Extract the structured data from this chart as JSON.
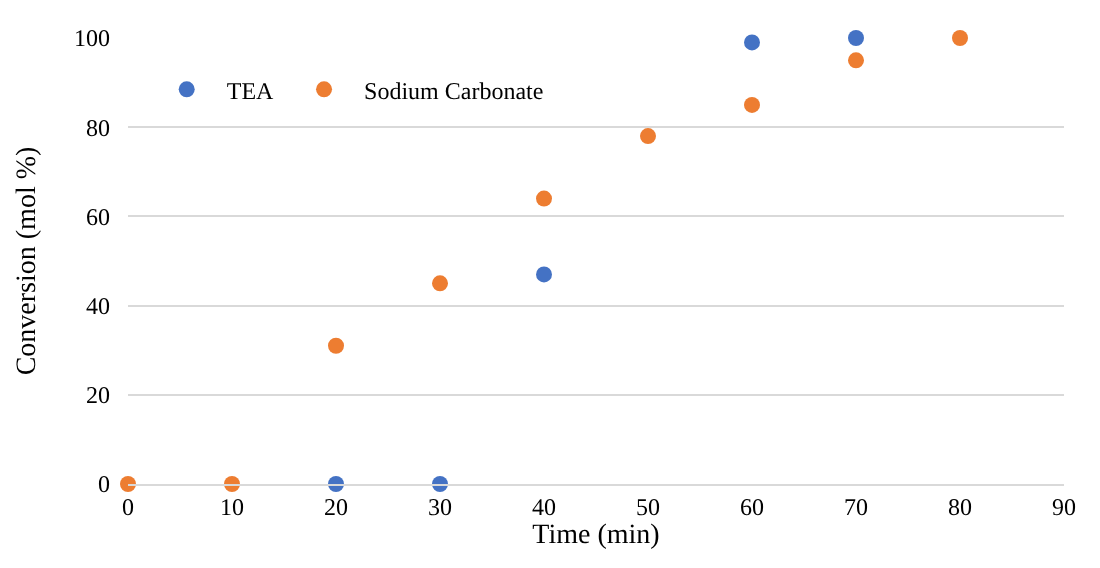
{
  "chart_data": {
    "type": "scatter",
    "xlabel": "Time (min)",
    "ylabel": "Conversion (mol %)",
    "x": [
      0,
      10,
      20,
      30,
      40,
      50,
      60,
      70,
      80
    ],
    "series": [
      {
        "name": "TEA",
        "color": "#4472c4",
        "values": [
          null,
          null,
          0,
          0,
          47,
          null,
          99,
          100,
          null
        ]
      },
      {
        "name": "Sodium Carbonate",
        "color": "#ed7d31",
        "values": [
          0,
          0,
          31,
          45,
          64,
          78,
          85,
          95,
          100
        ]
      }
    ],
    "xlim": [
      0,
      90
    ],
    "xticks": [
      0,
      10,
      20,
      30,
      40,
      50,
      60,
      70,
      80,
      90
    ],
    "ylim": [
      0,
      100
    ],
    "yticks": [
      0,
      20,
      40,
      60,
      80,
      100
    ],
    "grid": "y",
    "legend": "top left",
    "marker": "circle"
  }
}
